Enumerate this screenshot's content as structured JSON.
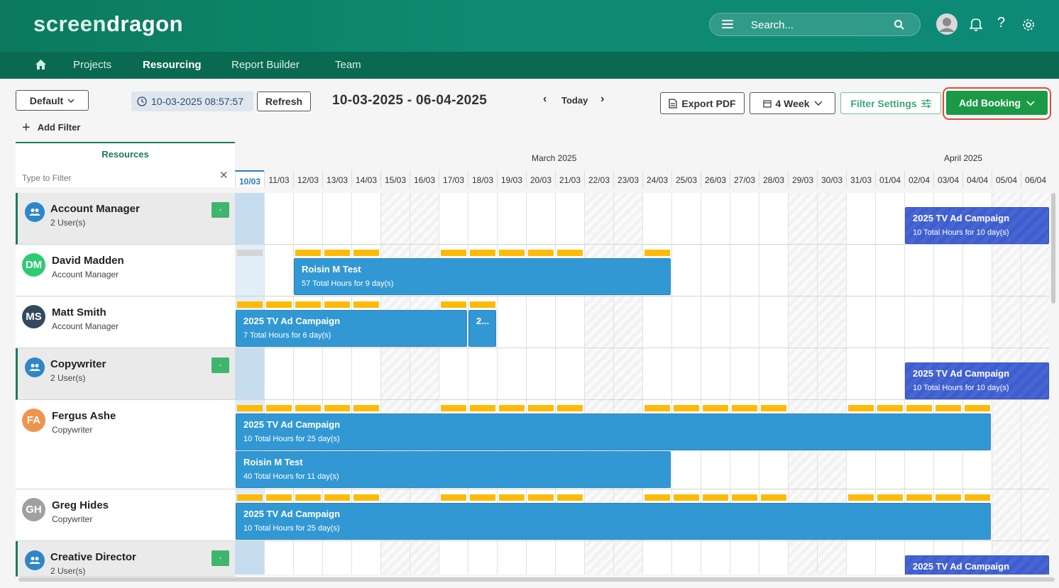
{
  "app": {
    "logo_part1": "screen",
    "logo_part2": "dragon",
    "search_placeholder": "Search..."
  },
  "nav": {
    "items": [
      "Projects",
      "Resourcing",
      "Report Builder",
      "Team"
    ],
    "active": "Resourcing"
  },
  "toolbar": {
    "view_select": "Default",
    "timestamp": "10-03-2025 08:57:57",
    "refresh_label": "Refresh",
    "date_range": "10-03-2025 - 06-04-2025",
    "today_label": "Today",
    "export_label": "Export PDF",
    "period_select": "4 Week",
    "filter_settings_label": "Filter Settings",
    "add_booking_label": "Add Booking",
    "add_filter_label": "Add Filter"
  },
  "resources_panel": {
    "title": "Resources",
    "filter_placeholder": "Type to Filter"
  },
  "calendar": {
    "months": [
      {
        "label": "March 2025"
      },
      {
        "label": "April 2025"
      }
    ],
    "days": [
      "10/03",
      "11/03",
      "12/03",
      "13/03",
      "14/03",
      "15/03",
      "16/03",
      "17/03",
      "18/03",
      "19/03",
      "20/03",
      "21/03",
      "22/03",
      "23/03",
      "24/03",
      "25/03",
      "26/03",
      "27/03",
      "28/03",
      "29/03",
      "30/03",
      "31/03",
      "01/04",
      "02/04",
      "03/04",
      "04/04",
      "05/04",
      "06/04"
    ],
    "today_index": 0,
    "weekend_indices": [
      5,
      6,
      12,
      13,
      19,
      20,
      26,
      27
    ]
  },
  "resources": [
    {
      "type": "group",
      "name": "Account Manager",
      "sub": "2 User(s)",
      "collapse": "-"
    },
    {
      "type": "user",
      "initials": "DM",
      "color": "#2ecc71",
      "name": "David Madden",
      "sub": "Account Manager"
    },
    {
      "type": "user",
      "initials": "MS",
      "color": "#34495e",
      "name": "Matt Smith",
      "sub": "Account Manager"
    },
    {
      "type": "group",
      "name": "Copywriter",
      "sub": "2 User(s)",
      "collapse": "-"
    },
    {
      "type": "user",
      "initials": "FA",
      "color": "#f0944d",
      "name": "Fergus Ashe",
      "sub": "Copywriter"
    },
    {
      "type": "user",
      "initials": "GH",
      "color": "#a0a0a0",
      "name": "Greg Hides",
      "sub": "Copywriter"
    },
    {
      "type": "group",
      "name": "Creative Director",
      "sub": "2 User(s)",
      "collapse": "-"
    }
  ],
  "bookings": [
    {
      "row": 0,
      "start": 23,
      "span": 5,
      "title": "2025 TV Ad Campaign",
      "subtitle": "10 Total Hours for 10 day(s)",
      "style": "dark"
    },
    {
      "row": 1,
      "start": 2,
      "span": 13,
      "title": "Roisin M Test",
      "subtitle": "57 Total Hours for 9 day(s)"
    },
    {
      "row": 2,
      "start": 0,
      "span": 8,
      "title": "2025 TV Ad Campaign",
      "subtitle": "7 Total Hours for 6 day(s)"
    },
    {
      "row": 2,
      "start": 8,
      "span": 1,
      "title": "2...",
      "subtitle": ""
    },
    {
      "row": 3,
      "start": 23,
      "span": 5,
      "title": "2025 TV Ad Campaign",
      "subtitle": "10 Total Hours for 10 day(s)",
      "style": "dark"
    },
    {
      "row": 4,
      "start": 0,
      "span": 26,
      "title": "2025 TV Ad Campaign",
      "subtitle": "10 Total Hours for 25 day(s)",
      "lane": 0
    },
    {
      "row": 4,
      "start": 0,
      "span": 15,
      "title": "Roisin M Test",
      "subtitle": "40 Total Hours for 11 day(s)",
      "lane": 1
    },
    {
      "row": 5,
      "start": 0,
      "span": 26,
      "title": "2025 TV Ad Campaign",
      "subtitle": "10 Total Hours for 25 day(s)"
    },
    {
      "row": 6,
      "start": 23,
      "span": 5,
      "title": "2025 TV Ad Campaign",
      "subtitle": "",
      "style": "dark"
    }
  ],
  "utilization": [
    {
      "row": 1,
      "yellow": [
        2,
        3,
        4,
        7,
        8,
        9,
        10,
        11,
        14
      ],
      "grey": [
        0
      ]
    },
    {
      "row": 2,
      "yellow": [
        0,
        1,
        2,
        3,
        4,
        7,
        8
      ],
      "grey": []
    },
    {
      "row": 4,
      "yellow": [
        0,
        1,
        2,
        3,
        4,
        7,
        8,
        9,
        10,
        11,
        14,
        15,
        16,
        17,
        18,
        21,
        22,
        23,
        24,
        25
      ],
      "grey": []
    },
    {
      "row": 5,
      "yellow": [
        0,
        1,
        2,
        3,
        4,
        7,
        8,
        9,
        10,
        11,
        14,
        15,
        16,
        17,
        18,
        21,
        22,
        23,
        24,
        25
      ],
      "grey": []
    }
  ]
}
